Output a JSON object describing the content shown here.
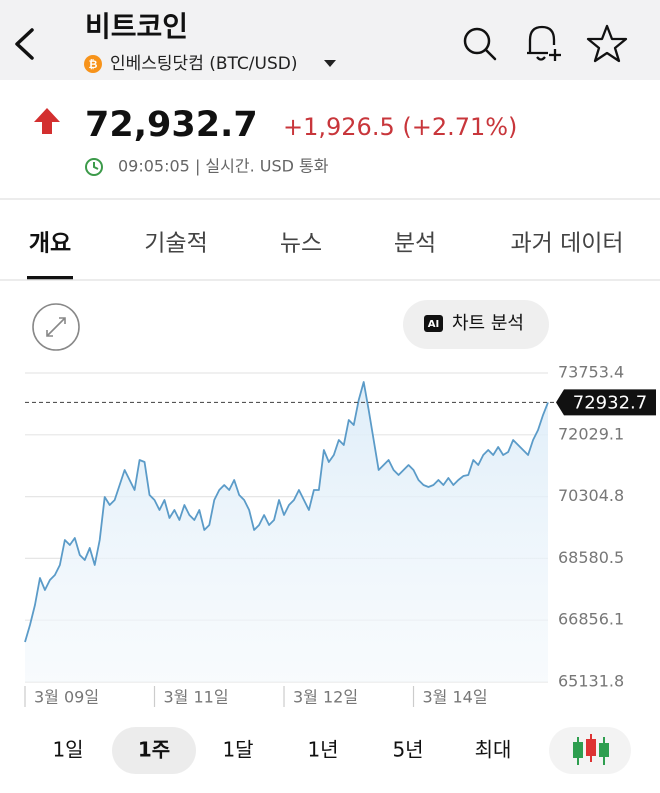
{
  "header": {
    "title": "비트코인",
    "source": "인베스팅닷컴 (BTC/USD)"
  },
  "quote": {
    "price": "72,932.7",
    "change": "+1,926.5 (+2.71%)",
    "time_info": "09:05:05 | 실시간. USD 통화"
  },
  "tabs": [
    "개요",
    "기술적",
    "뉴스",
    "분석",
    "과거 데이터"
  ],
  "chart_controls": {
    "ai_badge": "AI",
    "ai_button": "차트 분석"
  },
  "chart_data": {
    "type": "line",
    "color": "#5b9bc8",
    "values": [
      66248,
      66722,
      67280,
      68034,
      67699,
      67978,
      68117,
      68396,
      69094,
      68954,
      69150,
      68675,
      68536,
      68871,
      68396,
      69094,
      70294,
      70070,
      70210,
      70628,
      71047,
      70768,
      70489,
      71326,
      71270,
      70349,
      70210,
      69931,
      70210,
      69708,
      69931,
      69652,
      70070,
      69791,
      69652,
      69931,
      69373,
      69512,
      70210,
      70489,
      70628,
      70489,
      70768,
      70349,
      70210,
      69931,
      69373,
      69512,
      69791,
      69512,
      69652,
      70210,
      69791,
      70070,
      70210,
      70489,
      70210,
      69931,
      70489,
      70489,
      71605,
      71270,
      71465,
      71884,
      71744,
      72442,
      72302,
      73000,
      73502,
      72721,
      71884,
      71047,
      71186,
      71326,
      71047,
      70907,
      71047,
      71186,
      71047,
      70768,
      70628,
      70573,
      70628,
      70768,
      70628,
      70824,
      70628,
      70768,
      70879,
      70907,
      71326,
      71186,
      71465,
      71605,
      71465,
      71689,
      71465,
      71549,
      71884,
      71744,
      71605,
      71465,
      71884,
      72163,
      72581,
      72932.7
    ],
    "xlim": [
      0,
      105
    ],
    "xticks": [
      {
        "value": 0,
        "label": "3월 09일"
      },
      {
        "value": 26,
        "label": "3월 11일"
      },
      {
        "value": 52,
        "label": "3월 12일"
      },
      {
        "value": 78,
        "label": "3월 14일"
      }
    ],
    "ylim": [
      65131.8,
      73753.4
    ],
    "yticks": [
      65131.8,
      66856.1,
      68580.5,
      70304.8,
      72029.1,
      73753.4
    ],
    "grid": true
  },
  "periods": [
    "1일",
    "1주",
    "1달",
    "1년",
    "5년",
    "최대"
  ],
  "selected_period": 1
}
